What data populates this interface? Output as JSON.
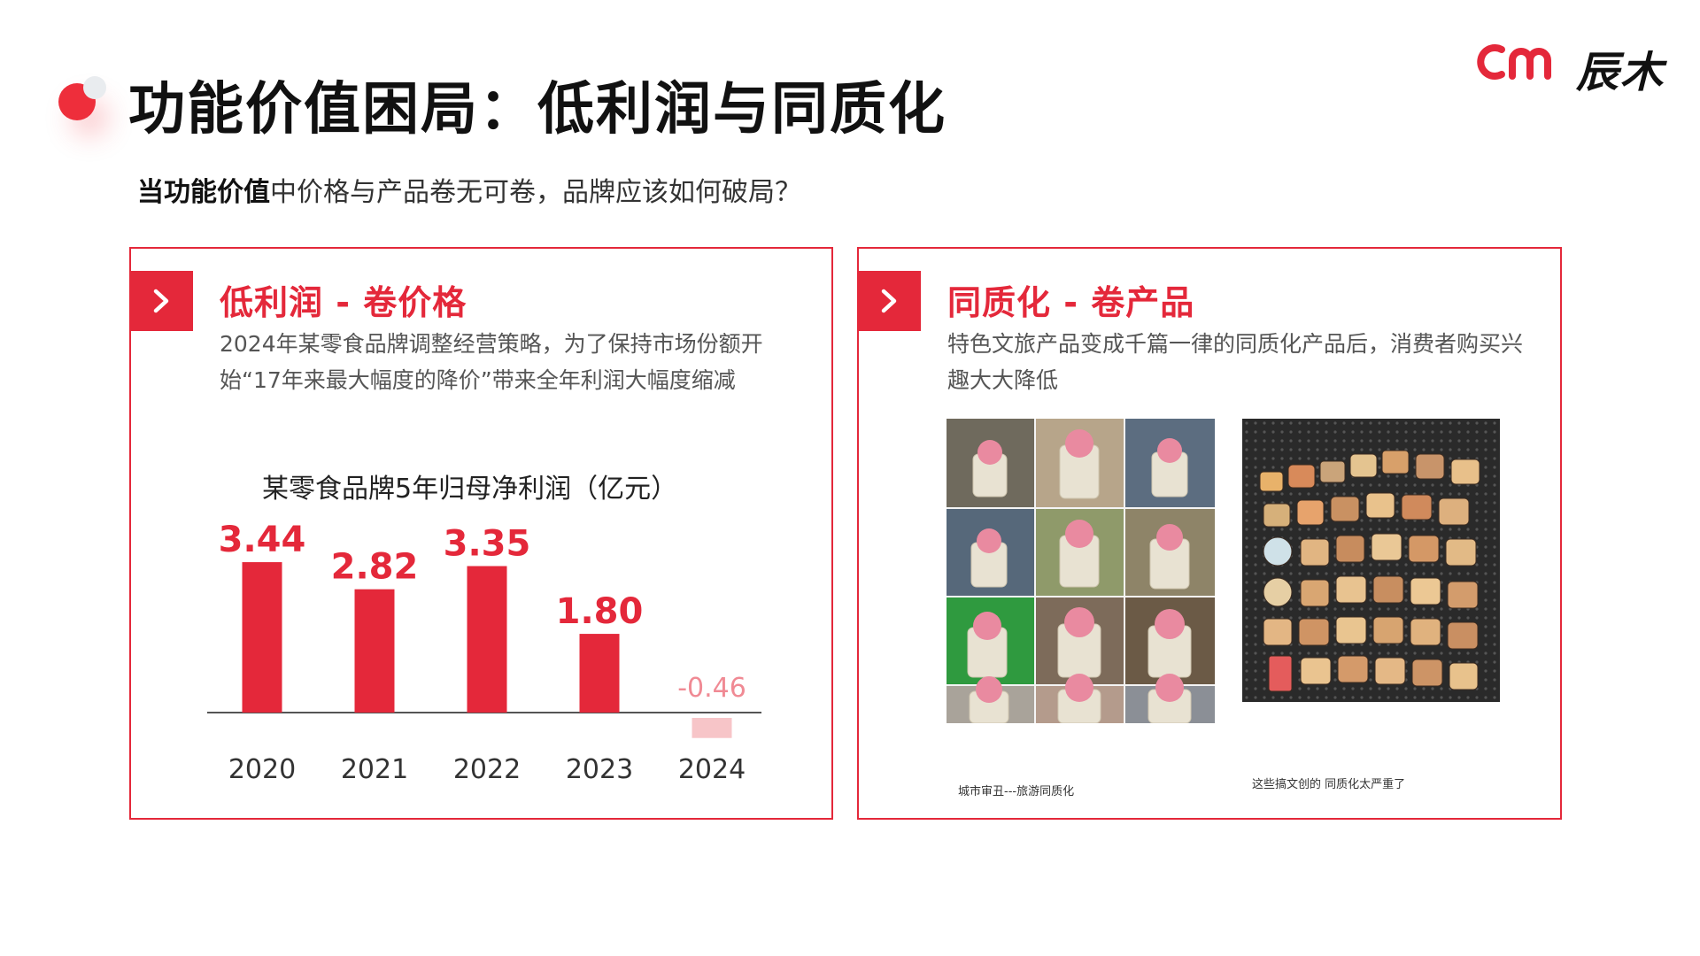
{
  "header": {
    "title": "功能价值困局：低利润与同质化",
    "logo_text": "辰木",
    "subtitle_em": "当功能价值",
    "subtitle_rest": "中价格与产品卷无可卷，品牌应该如何破局？"
  },
  "colors": {
    "accent": "#e4283a",
    "negative": "#f7c5c8",
    "negative_label": "#f08a94"
  },
  "left_panel": {
    "heading": "低利润 - 卷价格",
    "description": "2024年某零食品牌调整经营策略，为了保持市场份额开始“17年来最大幅度的降价”带来全年利润大幅度缩减"
  },
  "right_panel": {
    "heading": "同质化 - 卷产品",
    "description": "特色文旅产品变成千篇一律的同质化产品后，消费者购买兴趣大大降低",
    "caption_left": "城市审丑---旅游同质化",
    "caption_right": "这些搞文创的 同质化太严重了"
  },
  "chart_data": {
    "type": "bar",
    "title": "某零食品牌5年归母净利润（亿元）",
    "categories": [
      "2020",
      "2021",
      "2022",
      "2023",
      "2024"
    ],
    "values": [
      3.44,
      2.82,
      3.35,
      1.8,
      -0.46
    ],
    "value_labels": [
      "3.44",
      "2.82",
      "3.35",
      "1.80",
      "-0.46"
    ],
    "xlabel": "",
    "ylabel": "",
    "grid": false
  }
}
